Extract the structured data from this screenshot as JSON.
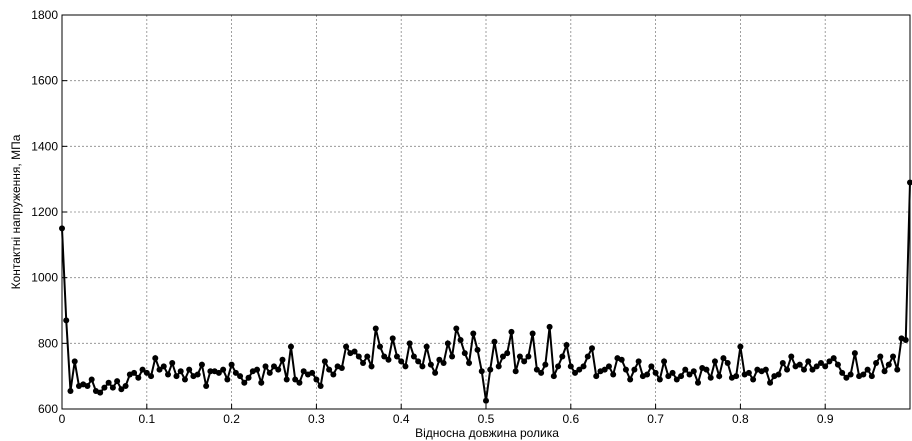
{
  "chart_data": {
    "type": "line",
    "xlabel": "Відносна довжина ролика",
    "ylabel": "Контактні напруження, МПа",
    "xlim": [
      0,
      1
    ],
    "ylim": [
      600,
      1800
    ],
    "xticks": [
      0,
      0.1,
      0.2,
      0.3,
      0.4,
      0.5,
      0.6,
      0.7,
      0.8,
      0.9
    ],
    "yticks": [
      600,
      800,
      1000,
      1200,
      1400,
      1600,
      1800
    ],
    "grid": true,
    "x": [
      0,
      0.005,
      0.01,
      0.015,
      0.02,
      0.025,
      0.03,
      0.035,
      0.04,
      0.045,
      0.05,
      0.055,
      0.06,
      0.065,
      0.07,
      0.075,
      0.08,
      0.085,
      0.09,
      0.095,
      0.1,
      0.105,
      0.11,
      0.115,
      0.12,
      0.125,
      0.13,
      0.135,
      0.14,
      0.145,
      0.15,
      0.155,
      0.16,
      0.165,
      0.17,
      0.175,
      0.18,
      0.185,
      0.19,
      0.195,
      0.2,
      0.205,
      0.21,
      0.215,
      0.22,
      0.225,
      0.23,
      0.235,
      0.24,
      0.245,
      0.25,
      0.255,
      0.26,
      0.265,
      0.27,
      0.275,
      0.28,
      0.285,
      0.29,
      0.295,
      0.3,
      0.305,
      0.31,
      0.315,
      0.32,
      0.325,
      0.33,
      0.335,
      0.34,
      0.345,
      0.35,
      0.355,
      0.36,
      0.365,
      0.37,
      0.375,
      0.38,
      0.385,
      0.39,
      0.395,
      0.4,
      0.405,
      0.41,
      0.415,
      0.42,
      0.425,
      0.43,
      0.435,
      0.44,
      0.445,
      0.45,
      0.455,
      0.46,
      0.465,
      0.47,
      0.475,
      0.48,
      0.485,
      0.49,
      0.495,
      0.5,
      0.505,
      0.51,
      0.515,
      0.52,
      0.525,
      0.53,
      0.535,
      0.54,
      0.545,
      0.55,
      0.555,
      0.56,
      0.565,
      0.57,
      0.575,
      0.58,
      0.585,
      0.59,
      0.595,
      0.6,
      0.605,
      0.61,
      0.615,
      0.62,
      0.625,
      0.63,
      0.635,
      0.64,
      0.645,
      0.65,
      0.655,
      0.66,
      0.665,
      0.67,
      0.675,
      0.68,
      0.685,
      0.69,
      0.695,
      0.7,
      0.705,
      0.71,
      0.715,
      0.72,
      0.725,
      0.73,
      0.735,
      0.74,
      0.745,
      0.75,
      0.755,
      0.76,
      0.765,
      0.77,
      0.775,
      0.78,
      0.785,
      0.79,
      0.795,
      0.8,
      0.805,
      0.81,
      0.815,
      0.82,
      0.825,
      0.83,
      0.835,
      0.84,
      0.845,
      0.85,
      0.855,
      0.86,
      0.865,
      0.87,
      0.875,
      0.88,
      0.885,
      0.89,
      0.895,
      0.9,
      0.905,
      0.91,
      0.915,
      0.92,
      0.925,
      0.93,
      0.935,
      0.94,
      0.945,
      0.95,
      0.955,
      0.96,
      0.965,
      0.97,
      0.975,
      0.98,
      0.985,
      0.99,
      0.995,
      1
    ],
    "series": [
      {
        "color": "#000000",
        "values": [
          1150,
          870,
          655,
          745,
          670,
          675,
          670,
          690,
          655,
          650,
          665,
          680,
          665,
          685,
          660,
          670,
          705,
          710,
          695,
          720,
          710,
          700,
          755,
          720,
          730,
          705,
          740,
          700,
          715,
          690,
          720,
          700,
          705,
          735,
          670,
          715,
          715,
          710,
          720,
          690,
          735,
          710,
          700,
          680,
          695,
          715,
          720,
          680,
          730,
          710,
          730,
          720,
          750,
          690,
          790,
          690,
          680,
          715,
          705,
          710,
          690,
          670,
          745,
          720,
          705,
          730,
          725,
          790,
          770,
          775,
          760,
          740,
          760,
          730,
          845,
          790,
          760,
          750,
          815,
          760,
          745,
          730,
          800,
          760,
          745,
          730,
          790,
          735,
          710,
          750,
          740,
          800,
          760,
          845,
          810,
          770,
          740,
          830,
          780,
          715,
          625,
          720,
          805,
          730,
          760,
          770,
          835,
          715,
          760,
          745,
          760,
          830,
          720,
          710,
          735,
          850,
          700,
          730,
          760,
          795,
          730,
          710,
          720,
          730,
          760,
          785,
          700,
          715,
          720,
          730,
          705,
          755,
          750,
          720,
          690,
          720,
          745,
          700,
          705,
          730,
          710,
          690,
          745,
          700,
          710,
          690,
          700,
          720,
          705,
          715,
          680,
          725,
          720,
          695,
          745,
          700,
          755,
          740,
          695,
          700,
          790,
          705,
          710,
          690,
          720,
          715,
          720,
          680,
          700,
          705,
          740,
          720,
          760,
          730,
          735,
          720,
          745,
          720,
          730,
          740,
          730,
          745,
          755,
          735,
          710,
          695,
          705,
          770,
          700,
          705,
          720,
          700,
          740,
          760,
          715,
          735,
          760,
          720,
          815,
          810,
          1290
        ]
      }
    ]
  }
}
